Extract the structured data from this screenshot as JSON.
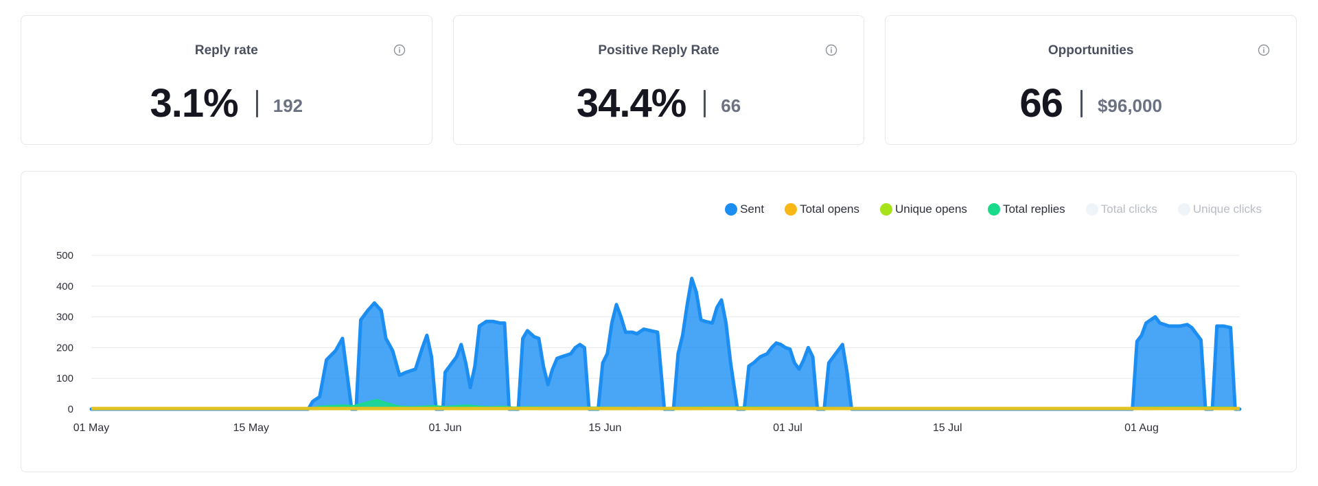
{
  "cards": [
    {
      "title": "Reply rate",
      "value": "3.1%",
      "sub": "192"
    },
    {
      "title": "Positive Reply Rate",
      "value": "34.4%",
      "sub": "66"
    },
    {
      "title": "Opportunities",
      "value": "66",
      "sub": "$96,000"
    }
  ],
  "legend": [
    {
      "label": "Sent",
      "color": "#1c8ef2",
      "muted": false
    },
    {
      "label": "Total opens",
      "color": "#f7b815",
      "muted": false
    },
    {
      "label": "Unique opens",
      "color": "#a6e31b",
      "muted": false
    },
    {
      "label": "Total replies",
      "color": "#19d98b",
      "muted": false
    },
    {
      "label": "Total clicks",
      "color": "#eef4f8",
      "muted": true
    },
    {
      "label": "Unique clicks",
      "color": "#eef4f8",
      "muted": true
    }
  ],
  "chart_data": {
    "type": "area",
    "y_ticks": [
      "0",
      "100",
      "200",
      "300",
      "400",
      "500"
    ],
    "ylim": [
      0,
      500
    ],
    "x_start": "01 May",
    "x_end": "10 Aug",
    "x_ticks": [
      {
        "label": "01 May",
        "day": 0
      },
      {
        "label": "15 May",
        "day": 14
      },
      {
        "label": "01 Jun",
        "day": 31
      },
      {
        "label": "15 Jun",
        "day": 45
      },
      {
        "label": "01 Jul",
        "day": 61
      },
      {
        "label": "15 Jul",
        "day": 75
      },
      {
        "label": "01 Aug",
        "day": 92
      }
    ],
    "series": [
      {
        "name": "Sent",
        "color": "#1c8ef2",
        "points": [
          [
            0,
            0
          ],
          [
            19,
            0
          ],
          [
            19.4,
            25
          ],
          [
            20,
            40
          ],
          [
            20.6,
            160
          ],
          [
            21.4,
            190
          ],
          [
            22,
            230
          ],
          [
            22.8,
            0
          ],
          [
            23.2,
            0
          ],
          [
            23.6,
            290
          ],
          [
            24.2,
            320
          ],
          [
            24.8,
            345
          ],
          [
            25.4,
            320
          ],
          [
            25.8,
            230
          ],
          [
            26.4,
            190
          ],
          [
            27,
            110
          ],
          [
            27.6,
            120
          ],
          [
            28.4,
            130
          ],
          [
            29,
            200
          ],
          [
            29.4,
            240
          ],
          [
            29.8,
            170
          ],
          [
            30.2,
            0
          ],
          [
            30.8,
            0
          ],
          [
            31,
            120
          ],
          [
            31.6,
            150
          ],
          [
            32,
            170
          ],
          [
            32.4,
            210
          ],
          [
            32.8,
            150
          ],
          [
            33.2,
            70
          ],
          [
            33.6,
            140
          ],
          [
            34,
            270
          ],
          [
            34.6,
            285
          ],
          [
            35.2,
            285
          ],
          [
            35.8,
            280
          ],
          [
            36.2,
            280
          ],
          [
            36.6,
            0
          ],
          [
            37.4,
            0
          ],
          [
            37.8,
            230
          ],
          [
            38.2,
            255
          ],
          [
            38.8,
            235
          ],
          [
            39.2,
            230
          ],
          [
            39.6,
            140
          ],
          [
            40,
            80
          ],
          [
            40.4,
            130
          ],
          [
            40.8,
            165
          ],
          [
            41.2,
            170
          ],
          [
            41.6,
            175
          ],
          [
            42,
            180
          ],
          [
            42.4,
            200
          ],
          [
            42.8,
            210
          ],
          [
            43.2,
            200
          ],
          [
            43.6,
            0
          ],
          [
            44.4,
            0
          ],
          [
            44.8,
            150
          ],
          [
            45.2,
            180
          ],
          [
            45.6,
            280
          ],
          [
            46,
            340
          ],
          [
            46.4,
            300
          ],
          [
            46.8,
            250
          ],
          [
            47.4,
            250
          ],
          [
            47.8,
            245
          ],
          [
            48.4,
            260
          ],
          [
            49,
            255
          ],
          [
            49.6,
            250
          ],
          [
            50.2,
            0
          ],
          [
            51,
            0
          ],
          [
            51.4,
            180
          ],
          [
            51.8,
            240
          ],
          [
            52.2,
            340
          ],
          [
            52.6,
            425
          ],
          [
            53,
            380
          ],
          [
            53.4,
            290
          ],
          [
            53.8,
            285
          ],
          [
            54.4,
            280
          ],
          [
            54.8,
            330
          ],
          [
            55.2,
            355
          ],
          [
            55.6,
            280
          ],
          [
            56,
            150
          ],
          [
            56.6,
            0
          ],
          [
            57.2,
            0
          ],
          [
            57.6,
            140
          ],
          [
            58,
            150
          ],
          [
            58.6,
            170
          ],
          [
            59.2,
            180
          ],
          [
            59.6,
            200
          ],
          [
            60,
            215
          ],
          [
            60.4,
            210
          ],
          [
            60.8,
            200
          ],
          [
            61.2,
            195
          ],
          [
            61.6,
            150
          ],
          [
            62,
            130
          ],
          [
            62.4,
            160
          ],
          [
            62.8,
            200
          ],
          [
            63.2,
            170
          ],
          [
            63.6,
            0
          ],
          [
            64.2,
            0
          ],
          [
            64.6,
            150
          ],
          [
            65,
            170
          ],
          [
            65.4,
            190
          ],
          [
            65.8,
            210
          ],
          [
            66.2,
            120
          ],
          [
            66.6,
            0
          ],
          [
            91.2,
            0
          ],
          [
            91.6,
            220
          ],
          [
            92,
            240
          ],
          [
            92.4,
            280
          ],
          [
            92.8,
            290
          ],
          [
            93.2,
            300
          ],
          [
            93.6,
            280
          ],
          [
            94,
            275
          ],
          [
            94.4,
            270
          ],
          [
            95.4,
            270
          ],
          [
            96,
            275
          ],
          [
            96.4,
            265
          ],
          [
            96.8,
            245
          ],
          [
            97.2,
            225
          ],
          [
            97.6,
            0
          ],
          [
            98.2,
            0
          ],
          [
            98.6,
            270
          ],
          [
            99.2,
            270
          ],
          [
            99.8,
            265
          ],
          [
            100.2,
            0
          ],
          [
            100.6,
            0
          ]
        ]
      },
      {
        "name": "Total replies",
        "color": "#19d98b",
        "points": [
          [
            0,
            0
          ],
          [
            19,
            0
          ],
          [
            20,
            8
          ],
          [
            21,
            10
          ],
          [
            22,
            12
          ],
          [
            23,
            10
          ],
          [
            24,
            20
          ],
          [
            25,
            30
          ],
          [
            26,
            18
          ],
          [
            27,
            8
          ],
          [
            28,
            6
          ],
          [
            29,
            8
          ],
          [
            30,
            10
          ],
          [
            31,
            7
          ],
          [
            32,
            10
          ],
          [
            33,
            12
          ],
          [
            34,
            8
          ],
          [
            35,
            6
          ],
          [
            36,
            8
          ],
          [
            37,
            5
          ],
          [
            38,
            6
          ],
          [
            40,
            5
          ],
          [
            45,
            5
          ],
          [
            50,
            4
          ],
          [
            55,
            6
          ],
          [
            60,
            5
          ],
          [
            66,
            4
          ],
          [
            67,
            0
          ],
          [
            91,
            0
          ],
          [
            92,
            5
          ],
          [
            96,
            6
          ],
          [
            100,
            5
          ],
          [
            100.6,
            0
          ]
        ]
      },
      {
        "name": "Total opens",
        "color": "#f7b815",
        "points": [
          [
            0,
            2
          ],
          [
            100.6,
            2
          ]
        ]
      }
    ]
  }
}
